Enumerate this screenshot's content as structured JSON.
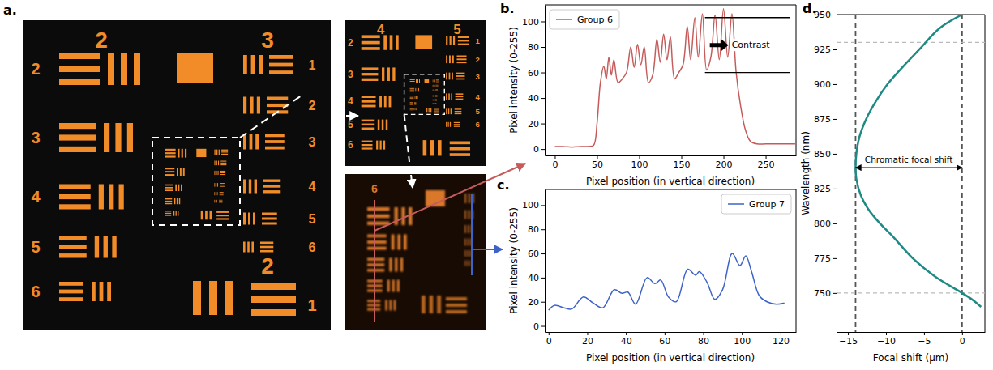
{
  "image": {
    "panel_label": "a.",
    "views": [
      {
        "group_labels": [
          "2",
          "3"
        ],
        "left_labels": [
          "2",
          "3",
          "4",
          "5",
          "6"
        ],
        "right_labels": [
          "1",
          "2",
          "3",
          "4",
          "5",
          "6"
        ],
        "bottom_labels": [
          "2",
          "1"
        ]
      },
      {
        "group_labels": [
          "4",
          "5"
        ],
        "left_labels": [
          "2",
          "3",
          "4",
          "5",
          "6"
        ],
        "right_labels": [
          "1",
          "2",
          "3",
          "4",
          "5",
          "6"
        ]
      },
      {
        "group_labels": [
          "6"
        ]
      }
    ]
  },
  "chart_data": [
    {
      "panel_label": "b.",
      "type": "line",
      "x_label": "Pixel position (in vertical direction)",
      "y_label": "Pixel intensity (0-255)",
      "x": [
        0,
        10,
        20,
        30,
        40,
        46,
        50,
        54,
        58,
        61,
        64,
        67,
        70,
        75,
        80,
        85,
        90,
        94,
        98,
        102,
        106,
        111,
        116,
        121,
        125,
        129,
        133,
        137,
        142,
        147,
        152,
        157,
        161,
        166,
        170,
        175,
        180,
        185,
        190,
        195,
        200,
        205,
        210,
        215,
        220,
        226,
        232,
        240,
        250,
        260,
        270,
        285
      ],
      "series": [
        {
          "name": "Group 6",
          "color": "#c65b5b",
          "values": [
            2,
            2,
            1.5,
            2,
            2,
            3,
            20,
            52,
            65,
            55,
            72,
            58,
            70,
            52,
            55,
            60,
            80,
            64,
            82,
            66,
            80,
            52,
            58,
            86,
            68,
            90,
            70,
            88,
            55,
            60,
            66,
            96,
            70,
            103,
            72,
            106,
            62,
            72,
            105,
            70,
            110,
            72,
            106,
            60,
            35,
            15,
            6,
            4,
            4,
            4,
            4,
            4
          ]
        }
      ],
      "xlim": [
        -12,
        286
      ],
      "ylim": [
        -5,
        113
      ],
      "xticks": [
        0,
        50,
        100,
        150,
        200,
        250
      ],
      "yticks": [
        0,
        20,
        40,
        60,
        80,
        100
      ],
      "legend": "upper left",
      "annotations": [
        {
          "text": "Contrast",
          "x": [
            178,
            279
          ],
          "y": [
            103,
            60
          ]
        }
      ]
    },
    {
      "panel_label": "c.",
      "type": "line",
      "x_label": "Pixel position (in vertical direction)",
      "y_label": "Pixel intensity (0-255)",
      "x": [
        0,
        3,
        8,
        12,
        18,
        23,
        28,
        34,
        38,
        41,
        45,
        51,
        55,
        58,
        62,
        66,
        72,
        76,
        78,
        82,
        86,
        90,
        95,
        99,
        102,
        105,
        109,
        113,
        118,
        122
      ],
      "series": [
        {
          "name": "Group 7",
          "color": "#3d63c9",
          "values": [
            13,
            17,
            15,
            14,
            24,
            19,
            15,
            30,
            27,
            28,
            18,
            40,
            35,
            38,
            24,
            20,
            47,
            42,
            45,
            36,
            22,
            30,
            60,
            50,
            58,
            45,
            25,
            20,
            18,
            19
          ]
        }
      ],
      "xlim": [
        -2,
        128
      ],
      "ylim": [
        -5,
        113
      ],
      "xticks": [
        0,
        20,
        40,
        60,
        80,
        100,
        120
      ],
      "yticks": [
        0,
        20,
        40,
        60,
        80,
        100
      ],
      "legend": "upper right"
    },
    {
      "panel_label": "d.",
      "type": "line",
      "x_label": "Focal shift (μm)",
      "y_label": "Wavelength (nm)",
      "x": [
        0,
        -3,
        -5.6,
        -7.7,
        -9.8,
        -11.3,
        -12.6,
        -13.5,
        -13.9,
        -14.0,
        -13.9,
        -13.3,
        -12.3,
        -10.8,
        -9.0,
        -6.5,
        -3.6,
        0,
        1.4,
        2.5
      ],
      "series": [
        {
          "color": "#1f8a84",
          "values": [
            950,
            940,
            925,
            913,
            900,
            888,
            875,
            862,
            850,
            840,
            832,
            820,
            810,
            800,
            790,
            775,
            762,
            750,
            745,
            740
          ]
        }
      ],
      "xlim": [
        -16.5,
        3
      ],
      "ylim": [
        722,
        950
      ],
      "xticks": [
        {
          "value": -15,
          "label": "−15"
        },
        {
          "value": -10,
          "label": "−10"
        },
        {
          "value": -5,
          "label": "−5"
        },
        0
      ],
      "yticks": [
        750,
        775,
        800,
        825,
        850,
        875,
        900,
        925,
        950
      ],
      "reference_lines": {
        "x": [
          -14,
          0
        ],
        "y": [
          930,
          750
        ]
      },
      "annotations": [
        {
          "text": "Chromatic focal shift",
          "x": [
            -14,
            0
          ],
          "y": 840
        }
      ]
    }
  ]
}
